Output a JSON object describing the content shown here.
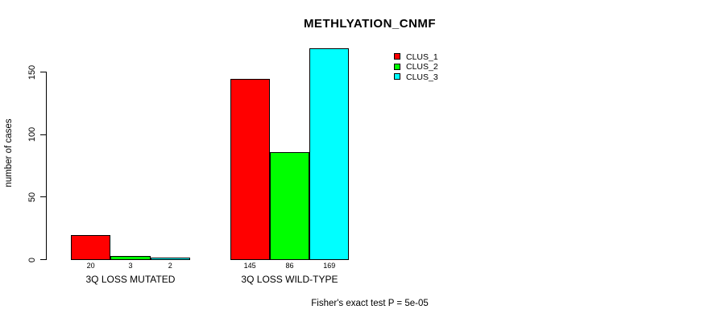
{
  "chart_data": {
    "type": "bar",
    "title": "METHLYATION_CNMF",
    "ylabel": "number of cases",
    "xlabel": "",
    "categories": [
      "3Q LOSS MUTATED",
      "3Q LOSS WILD-TYPE"
    ],
    "series": [
      {
        "name": "CLUS_1",
        "color": "#ff0000",
        "values": [
          20,
          145
        ]
      },
      {
        "name": "CLUS_2",
        "color": "#00ff00",
        "values": [
          3,
          86
        ]
      },
      {
        "name": "CLUS_3",
        "color": "#00ffff",
        "values": [
          2,
          169
        ]
      }
    ],
    "bar_value_labels": [
      [
        "20",
        "3",
        "2"
      ],
      [
        "145",
        "86",
        "169"
      ]
    ],
    "yticks": [
      "0",
      "50",
      "100",
      "150"
    ],
    "ylim": [
      0,
      169
    ],
    "grid": false,
    "legend_position": "top-right",
    "annotation": "Fisher's exact test P = 5e-05"
  }
}
